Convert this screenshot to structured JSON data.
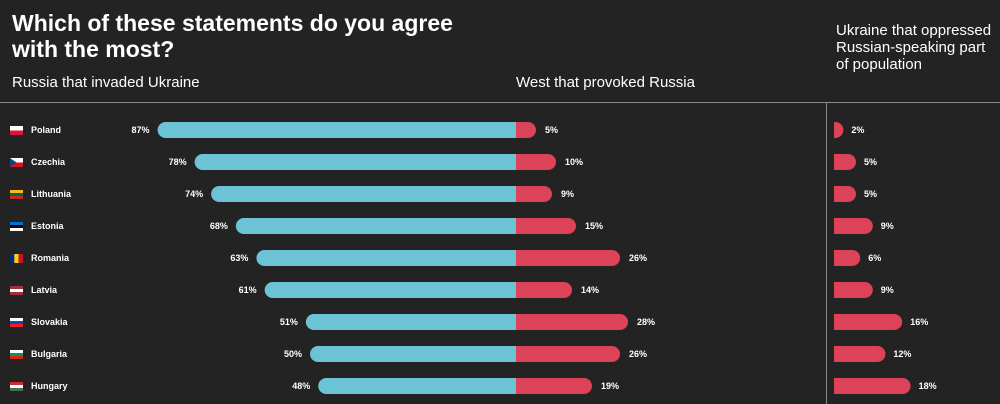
{
  "chart_data": {
    "type": "bar",
    "title": "Which of these statements do you agree with the most?",
    "columns": {
      "invaded": "Russia that invaded Ukraine",
      "provoked": "West that provoked Russia",
      "oppressed": "Ukraine that oppressed Russian-speaking part of population"
    },
    "categories": [
      "Poland",
      "Czechia",
      "Lithuania",
      "Estonia",
      "Romania",
      "Latvia",
      "Slovakia",
      "Bulgaria",
      "Hungary"
    ],
    "series": [
      {
        "name": "Russia that invaded Ukraine",
        "values": [
          87,
          78,
          74,
          68,
          63,
          61,
          51,
          50,
          48
        ]
      },
      {
        "name": "West that provoked Russia",
        "values": [
          5,
          10,
          9,
          15,
          26,
          14,
          28,
          26,
          19
        ]
      },
      {
        "name": "Ukraine that oppressed Russian-speaking part of population",
        "values": [
          2,
          5,
          5,
          9,
          6,
          9,
          16,
          12,
          18
        ]
      }
    ],
    "unit": "%",
    "flags": {
      "Poland": [
        "#ffffff",
        "#dc143c"
      ],
      "Czechia": [
        "#ffffff",
        "#d7141a",
        "#11457e"
      ],
      "Lithuania": [
        "#fdb913",
        "#006a44",
        "#c1272d"
      ],
      "Estonia": [
        "#0072ce",
        "#000000",
        "#ffffff"
      ],
      "Romania": [
        "#002b7f",
        "#fcd116",
        "#ce1126"
      ],
      "Latvia": [
        "#9e3039",
        "#ffffff",
        "#9e3039"
      ],
      "Slovakia": [
        "#ffffff",
        "#0b4ea2",
        "#ee1c25"
      ],
      "Bulgaria": [
        "#ffffff",
        "#00966e",
        "#d62612"
      ],
      "Hungary": [
        "#ce2939",
        "#ffffff",
        "#477050"
      ]
    }
  },
  "colors": {
    "invaded": "#6dc3d6",
    "provoked": "#dc4358",
    "oppressed": "#dc4358",
    "background": "#232323"
  }
}
